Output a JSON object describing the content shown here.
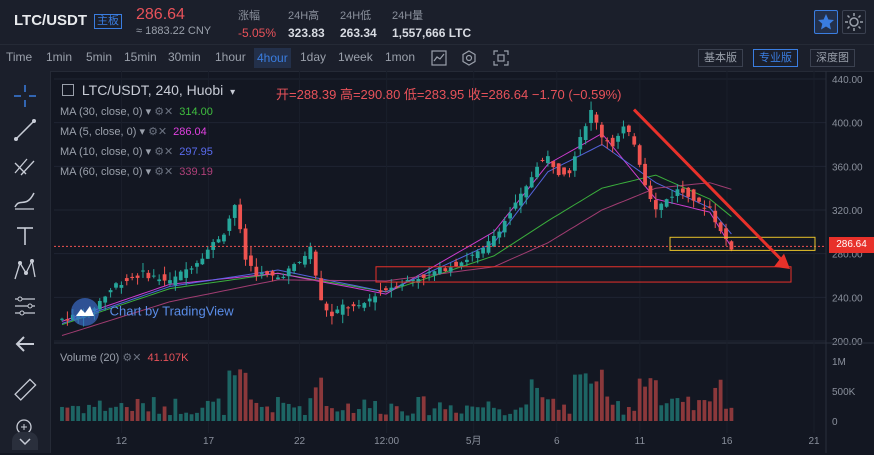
{
  "header": {
    "pair": "LTC/USDT",
    "badge": "主板",
    "price": "286.64",
    "cny": "≈ 1883.22 CNY",
    "stats": [
      {
        "label": "涨幅",
        "value": "-5.05%"
      },
      {
        "label": "24H高",
        "value": "323.83"
      },
      {
        "label": "24H低",
        "value": "263.34"
      },
      {
        "label": "24H量",
        "value": "1,557,666 LTC"
      }
    ]
  },
  "toolbar": {
    "timeframes": [
      "Time",
      "1min",
      "5min",
      "15min",
      "30min",
      "1hour",
      "4hour",
      "1day",
      "1week",
      "1mon"
    ],
    "active_timeframe": "4hour",
    "views": [
      "基本版",
      "专业版",
      "深度图"
    ],
    "active_view": "专业版"
  },
  "chart": {
    "symbol_line": "LTC/USDT, 240, Huobi",
    "ohlc": "开=288.39 高=290.80 低=283.95 收=286.64 −1.70 (−0.59%)",
    "watermark": "Chart by TradingView",
    "ma_lines": [
      {
        "label": "MA (30, close, 0)",
        "value": "314.00",
        "color": "#3fbf3f"
      },
      {
        "label": "MA (5, close, 0)",
        "value": "286.04",
        "color": "#e040e0"
      },
      {
        "label": "MA (10, close, 0)",
        "value": "297.95",
        "color": "#5a6cf0"
      },
      {
        "label": "MA (60, close, 0)",
        "value": "339.19",
        "color": "#b0407a"
      }
    ],
    "volume_label": "Volume (20)",
    "volume_value": "41.107K",
    "current_price_tag": "286.64",
    "colors": {
      "up": "#26a69a",
      "down": "#ef5350",
      "annotation": "#e8312a",
      "box_yellow": "#e8c22a"
    }
  },
  "chart_data": {
    "type": "candlestick",
    "y_ticks": [
      "440.00",
      "400.00",
      "360.00",
      "320.00",
      "280.00",
      "240.00",
      "200.00"
    ],
    "volume_ticks": [
      "1M",
      "500K",
      "0"
    ],
    "x_ticks": [
      "12",
      "17",
      "22",
      "12:00",
      "5月",
      "6",
      "11",
      "16",
      "21"
    ],
    "ylim": [
      200,
      440
    ],
    "price_path": [
      [
        0,
        220
      ],
      [
        5,
        226
      ],
      [
        10,
        252
      ],
      [
        15,
        262
      ],
      [
        20,
        254
      ],
      [
        25,
        273
      ],
      [
        30,
        300
      ],
      [
        32,
        325
      ],
      [
        34,
        275
      ],
      [
        36,
        262
      ],
      [
        40,
        258
      ],
      [
        44,
        272
      ],
      [
        46,
        285
      ],
      [
        48,
        236
      ],
      [
        50,
        222
      ],
      [
        52,
        232
      ],
      [
        55,
        230
      ],
      [
        58,
        243
      ],
      [
        62,
        252
      ],
      [
        66,
        258
      ],
      [
        70,
        265
      ],
      [
        74,
        273
      ],
      [
        78,
        283
      ],
      [
        82,
        310
      ],
      [
        86,
        340
      ],
      [
        88,
        362
      ],
      [
        90,
        368
      ],
      [
        92,
        355
      ],
      [
        94,
        356
      ],
      [
        96,
        388
      ],
      [
        98,
        410
      ],
      [
        100,
        388
      ],
      [
        102,
        380
      ],
      [
        104,
        395
      ],
      [
        106,
        382
      ],
      [
        108,
        345
      ],
      [
        110,
        320
      ],
      [
        112,
        330
      ],
      [
        114,
        338
      ],
      [
        116,
        335
      ],
      [
        118,
        325
      ],
      [
        120,
        322
      ],
      [
        122,
        300
      ],
      [
        124,
        286
      ]
    ],
    "ma_series": [
      {
        "name": "MA (30, close, 0)",
        "path": [
          [
            0,
            215
          ],
          [
            20,
            248
          ],
          [
            40,
            262
          ],
          [
            60,
            245
          ],
          [
            80,
            278
          ],
          [
            90,
            310
          ],
          [
            100,
            340
          ],
          [
            110,
            352
          ],
          [
            120,
            330
          ],
          [
            124,
            314
          ]
        ]
      },
      {
        "name": "MA (5, close, 0)",
        "path": [
          [
            0,
            218
          ],
          [
            20,
            252
          ],
          [
            40,
            262
          ],
          [
            60,
            243
          ],
          [
            80,
            300
          ],
          [
            90,
            362
          ],
          [
            100,
            390
          ],
          [
            110,
            330
          ],
          [
            120,
            318
          ],
          [
            124,
            286
          ]
        ]
      },
      {
        "name": "MA (10, close, 0)",
        "path": [
          [
            0,
            216
          ],
          [
            20,
            250
          ],
          [
            40,
            265
          ],
          [
            60,
            245
          ],
          [
            80,
            290
          ],
          [
            90,
            355
          ],
          [
            100,
            380
          ],
          [
            110,
            345
          ],
          [
            120,
            322
          ],
          [
            124,
            298
          ]
        ]
      },
      {
        "name": "MA (60, close, 0)",
        "path": [
          [
            0,
            205
          ],
          [
            20,
            236
          ],
          [
            40,
            256
          ],
          [
            60,
            255
          ],
          [
            80,
            268
          ],
          [
            90,
            290
          ],
          [
            100,
            320
          ],
          [
            110,
            340
          ],
          [
            120,
            345
          ],
          [
            124,
            339
          ]
        ]
      }
    ]
  }
}
